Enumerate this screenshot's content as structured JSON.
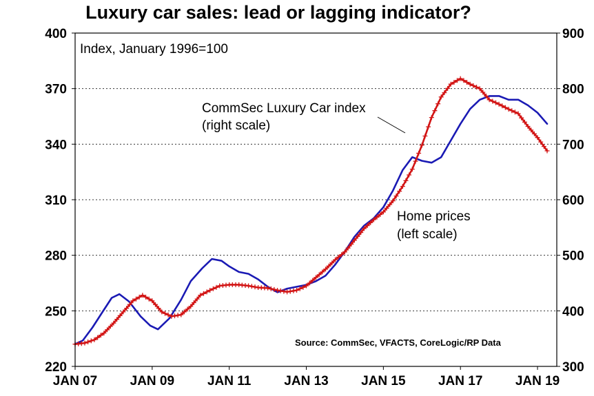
{
  "chart_data": {
    "type": "line",
    "title": "Luxury car sales: lead or lagging indicator?",
    "subtitle": "Index, January 1996=100",
    "source": "Source: CommSec, VFACTS, CoreLogic/RP Data",
    "x_ticks": [
      "JAN 07",
      "JAN 09",
      "JAN 11",
      "JAN 13",
      "JAN 15",
      "JAN 17",
      "JAN 19"
    ],
    "x_range": [
      2007.0,
      2019.5
    ],
    "y_left": {
      "ticks": [
        220,
        250,
        280,
        310,
        340,
        370,
        400
      ],
      "range": [
        220,
        400
      ]
    },
    "y_right": {
      "ticks": [
        300,
        400,
        500,
        600,
        700,
        800,
        900
      ],
      "range": [
        300,
        900
      ]
    },
    "grid": "horizontal dashed",
    "series": [
      {
        "name": "Home prices",
        "axis": "left",
        "color": "#1a1ab4",
        "marker": "none",
        "x": [
          2007.0,
          2007.2,
          2007.45,
          2007.7,
          2007.95,
          2008.15,
          2008.4,
          2008.7,
          2008.95,
          2009.15,
          2009.45,
          2009.75,
          2010.0,
          2010.3,
          2010.55,
          2010.8,
          2011.0,
          2011.25,
          2011.5,
          2011.75,
          2012.0,
          2012.25,
          2012.5,
          2012.75,
          2013.0,
          2013.25,
          2013.5,
          2013.75,
          2014.0,
          2014.25,
          2014.5,
          2014.75,
          2015.0,
          2015.25,
          2015.5,
          2015.75,
          2016.0,
          2016.25,
          2016.5,
          2016.75,
          2017.0,
          2017.25,
          2017.5,
          2017.75,
          2018.0,
          2018.25,
          2018.5,
          2018.75,
          2019.0,
          2019.25
        ],
        "values": [
          232,
          234,
          241,
          249,
          257,
          259,
          255,
          247,
          242,
          240,
          246,
          256,
          266,
          273,
          278,
          277,
          274,
          271,
          270,
          267,
          263,
          260,
          262,
          263,
          264,
          266,
          269,
          275,
          282,
          290,
          296,
          300,
          306,
          315,
          326,
          333,
          331,
          330,
          333,
          342,
          351,
          359,
          364,
          366,
          366,
          364,
          364,
          361,
          357,
          351
        ]
      },
      {
        "name": "CommSec Luxury Car index",
        "axis": "right",
        "color": "#d21414",
        "marker": "cross",
        "x": [
          2007.0,
          2007.25,
          2007.5,
          2007.75,
          2008.0,
          2008.25,
          2008.5,
          2008.75,
          2009.0,
          2009.25,
          2009.5,
          2009.75,
          2010.0,
          2010.25,
          2010.5,
          2010.75,
          2011.0,
          2011.25,
          2011.5,
          2011.75,
          2012.0,
          2012.25,
          2012.5,
          2012.75,
          2013.0,
          2013.25,
          2013.5,
          2013.75,
          2014.0,
          2014.25,
          2014.5,
          2014.75,
          2015.0,
          2015.25,
          2015.5,
          2015.75,
          2016.0,
          2016.25,
          2016.5,
          2016.75,
          2017.0,
          2017.25,
          2017.5,
          2017.75,
          2018.0,
          2018.25,
          2018.5,
          2018.75,
          2019.0,
          2019.25
        ],
        "values": [
          340,
          342,
          348,
          360,
          378,
          398,
          418,
          428,
          418,
          398,
          390,
          393,
          408,
          428,
          437,
          445,
          447,
          447,
          445,
          442,
          441,
          437,
          434,
          437,
          445,
          460,
          475,
          492,
          506,
          527,
          548,
          564,
          578,
          598,
          624,
          655,
          698,
          748,
          785,
          808,
          818,
          808,
          800,
          780,
          772,
          763,
          755,
          732,
          712,
          688
        ]
      }
    ],
    "annotations": [
      {
        "text": [
          "CommSec Luxury Car index",
          "(right scale)"
        ],
        "series": "CommSec Luxury Car index"
      },
      {
        "text": [
          "Home prices",
          "(left scale)"
        ],
        "series": "Home prices"
      }
    ]
  }
}
